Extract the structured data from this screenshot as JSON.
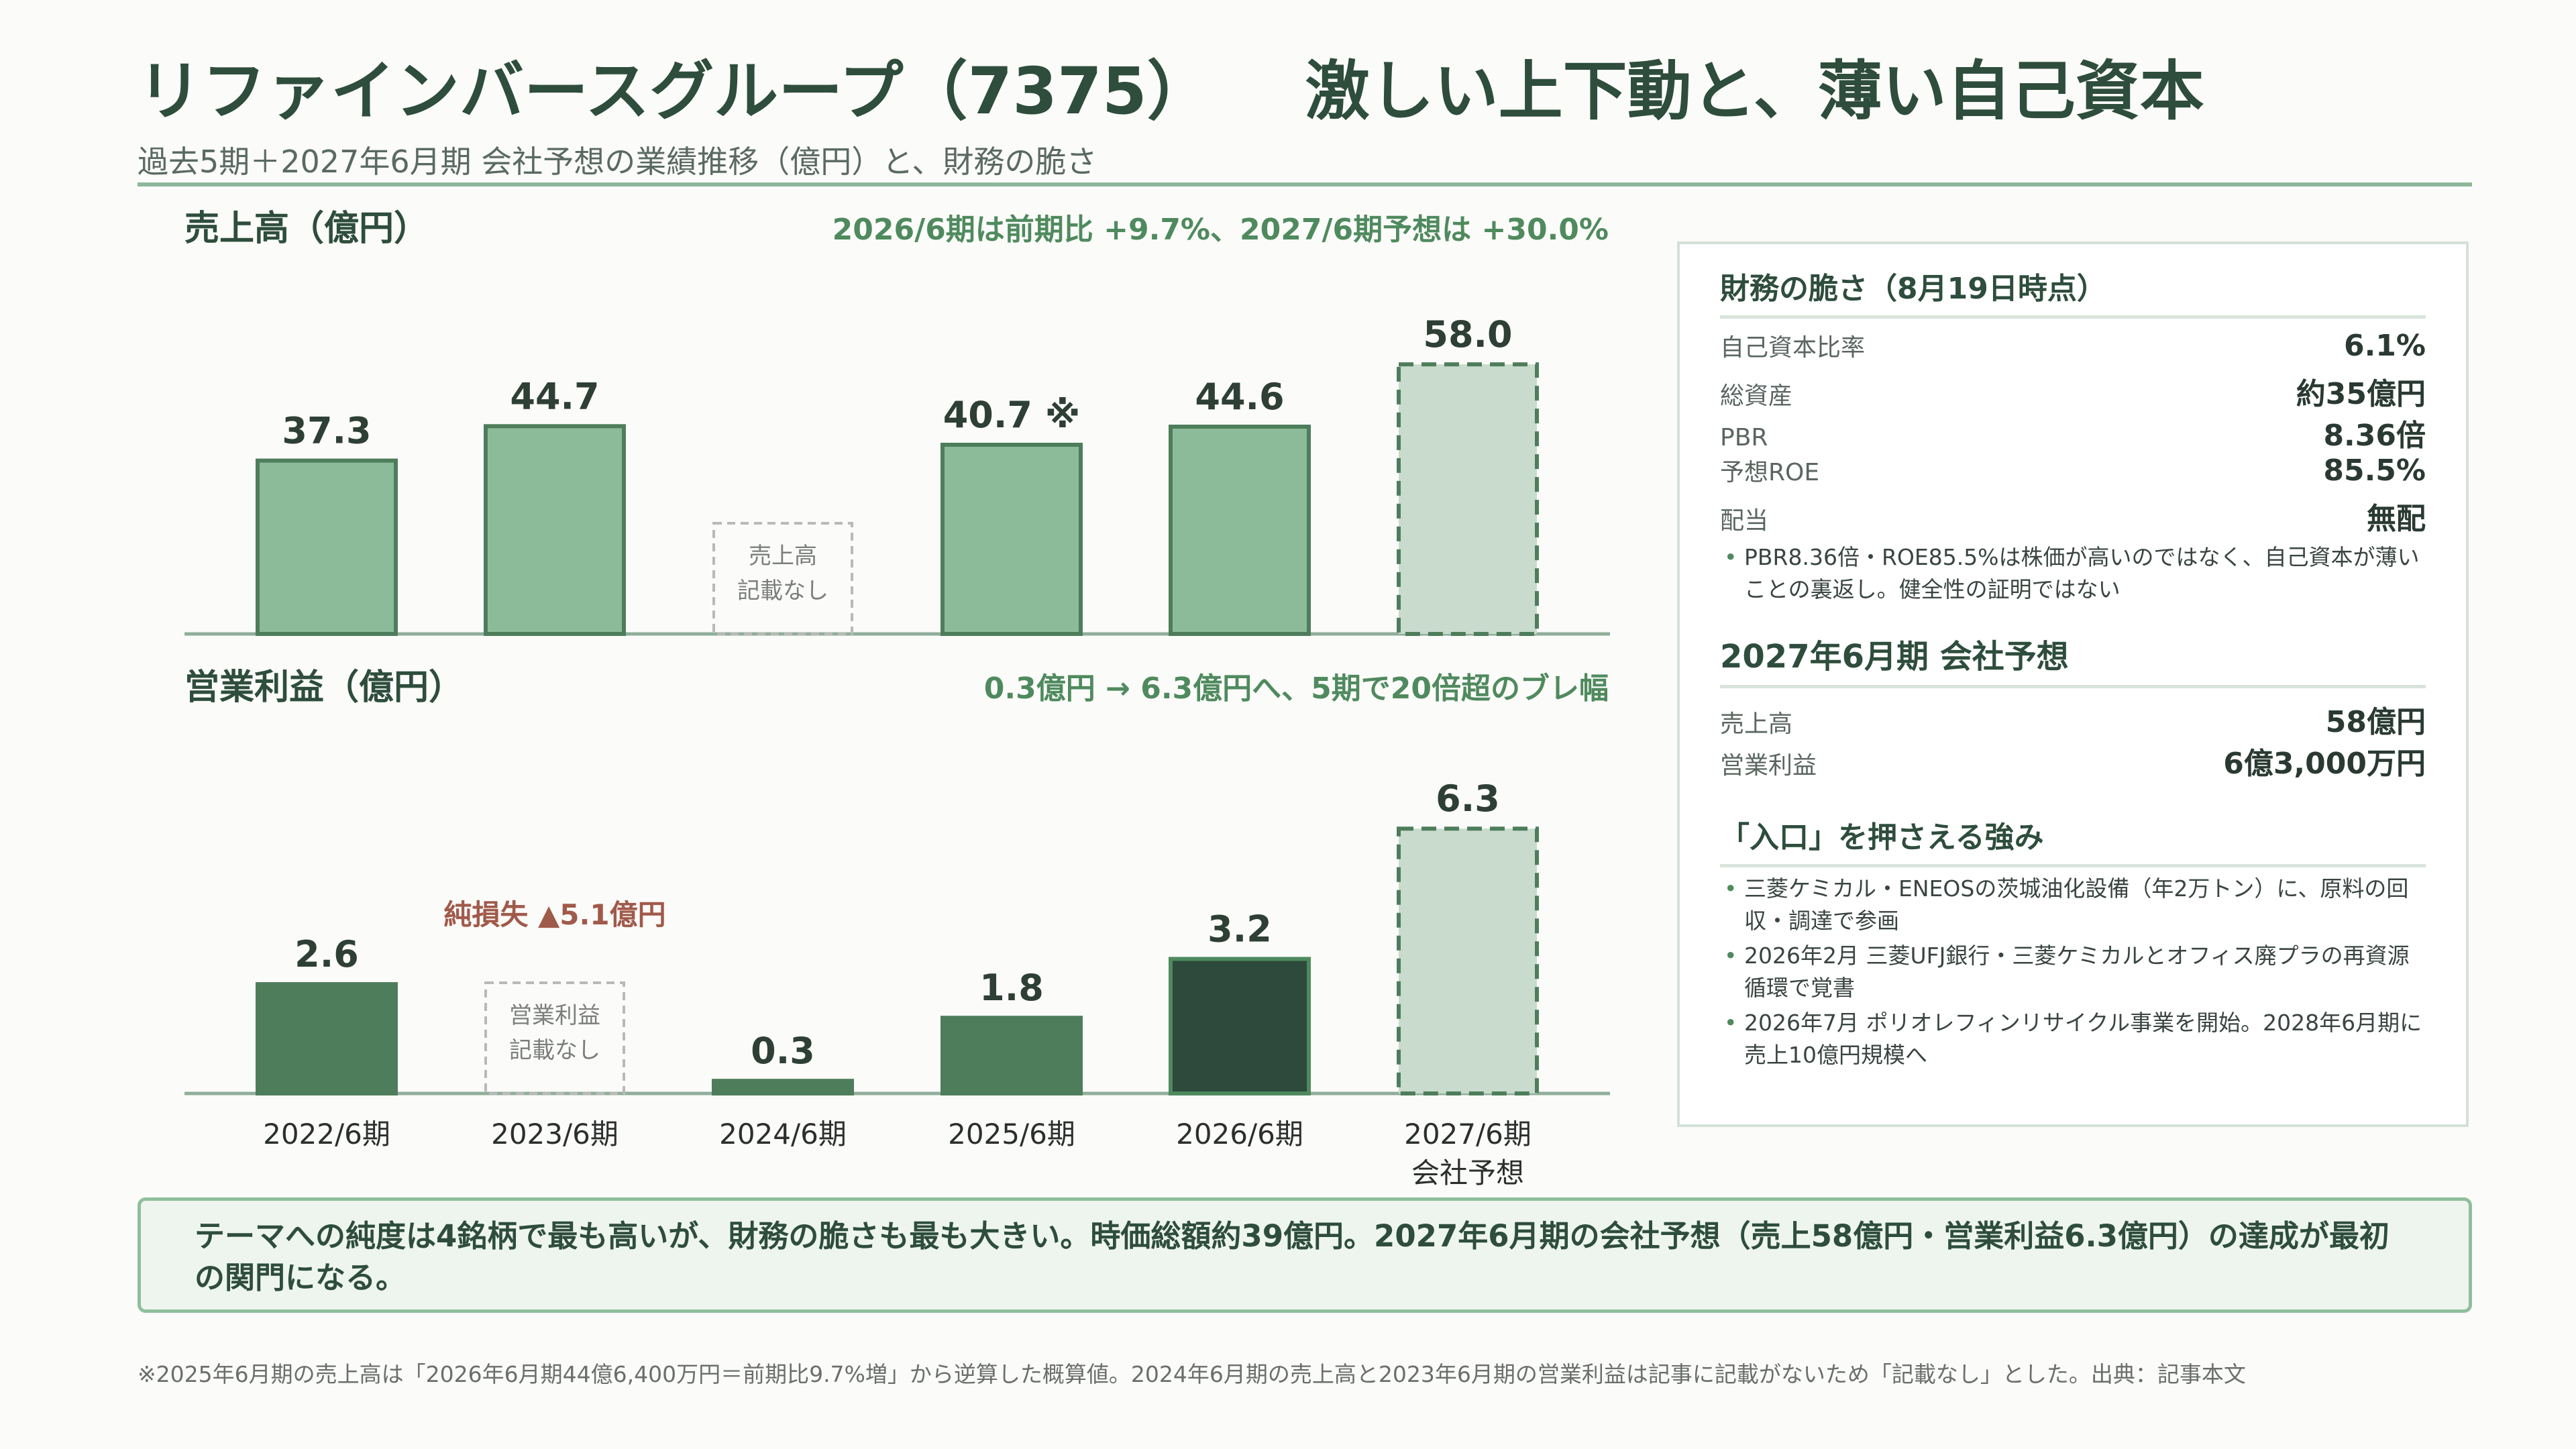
{
  "header": {
    "title_main": "リファインバースグループ（7375）",
    "title_sub": "激しい上下動と、薄い自己資本",
    "subtitle": "過去5期＋2027年6月期 会社予想の業績推移（億円）と、財務の脆さ"
  },
  "colors": {
    "accent": "#4f8a5e",
    "bar_light": "#8bbb98",
    "bar_mid": "#4e7d5b",
    "bar_dark": "#2d4a3c",
    "forecast": "#c8dbcd",
    "loss": "#a05a4a"
  },
  "chart_data": [
    {
      "type": "bar",
      "title": "売上高（億円）",
      "note": "2026/6期は前期比 +9.7%、2027/6期予想は +30.0%",
      "categories": [
        "2022/6期",
        "2023/6期",
        "2024/6期",
        "2025/6期",
        "2026/6期",
        "2027/6期 会社予想"
      ],
      "values": [
        37.3,
        44.7,
        null,
        40.7,
        44.6,
        58.0
      ],
      "data_labels": [
        "37.3",
        "44.7",
        "",
        "40.7 ※",
        "44.6",
        "58.0"
      ],
      "missing_labels": [
        "",
        "",
        "売上高\n記載なし",
        "",
        "",
        ""
      ],
      "forecast": [
        false,
        false,
        false,
        false,
        false,
        true
      ],
      "ylim": [
        0,
        70
      ]
    },
    {
      "type": "bar",
      "title": "営業利益（億円）",
      "note": "0.3億円 → 6.3億円へ、5期で20倍超のブレ幅",
      "categories": [
        "2022/6期",
        "2023/6期",
        "2024/6期",
        "2025/6期",
        "2026/6期",
        "2027/6期 会社予想"
      ],
      "values": [
        2.6,
        null,
        0.3,
        1.8,
        3.2,
        6.3
      ],
      "data_labels": [
        "2.6",
        "",
        "0.3",
        "1.8",
        "3.2",
        "6.3"
      ],
      "missing_labels": [
        "",
        "営業利益\n記載なし",
        "",
        "",
        "",
        ""
      ],
      "forecast": [
        false,
        false,
        false,
        false,
        false,
        true
      ],
      "highlight": [
        false,
        false,
        false,
        false,
        true,
        false
      ],
      "annotation": "純損失 ▲5.1億円",
      "ylim": [
        0,
        7.5
      ]
    }
  ],
  "x_labels": [
    [
      "2022/6期"
    ],
    [
      "2023/6期"
    ],
    [
      "2024/6期"
    ],
    [
      "2025/6期"
    ],
    [
      "2026/6期"
    ],
    [
      "2027/6期",
      "会社予想"
    ]
  ],
  "panel": {
    "fragility": {
      "title": "財務の脆さ（8月19日時点）",
      "rows": [
        {
          "k": "自己資本比率",
          "v": "6.1%"
        },
        {
          "k": "総資産",
          "v": "約35億円"
        },
        {
          "k": "PBR",
          "v": "8.36倍"
        },
        {
          "k": "予想ROE",
          "v": "85.5%"
        },
        {
          "k": "配当",
          "v": "無配"
        }
      ],
      "bullet": "PBR8.36倍・ROE85.5%は株価が高いのではなく、自己資本が薄いことの裏返し。健全性の証明ではない"
    },
    "forecast": {
      "title": "2027年6月期 会社予想",
      "rows": [
        {
          "k": "売上高",
          "v": "58億円"
        },
        {
          "k": "営業利益",
          "v": "6億3,000万円"
        }
      ]
    },
    "strengths": {
      "title": "「入口」を押さえる強み",
      "items": [
        "三菱ケミカル・ENEOSの茨城油化設備（年2万トン）に、原料の回収・調達で参画",
        "2026年2月 三菱UFJ銀行・三菱ケミカルとオフィス廃プラの再資源循環で覚書",
        "2026年7月 ポリオレフィンリサイクル事業を開始。2028年6月期に売上10億円規模へ"
      ]
    }
  },
  "conclusion": "テーマへの純度は4銘柄で最も高いが、財務の脆さも最も大きい。時価総額約39億円。2027年6月期の会社予想（売上58億円・営業利益6.3億円）の達成が最初の関門になる。",
  "footnote": "※2025年6月期の売上高は「2026年6月期44億6,400万円＝前期比9.7%増」から逆算した概算値。2024年6月期の売上高と2023年6月期の営業利益は記事に記載がないため「記載なし」とした。出典：記事本文"
}
